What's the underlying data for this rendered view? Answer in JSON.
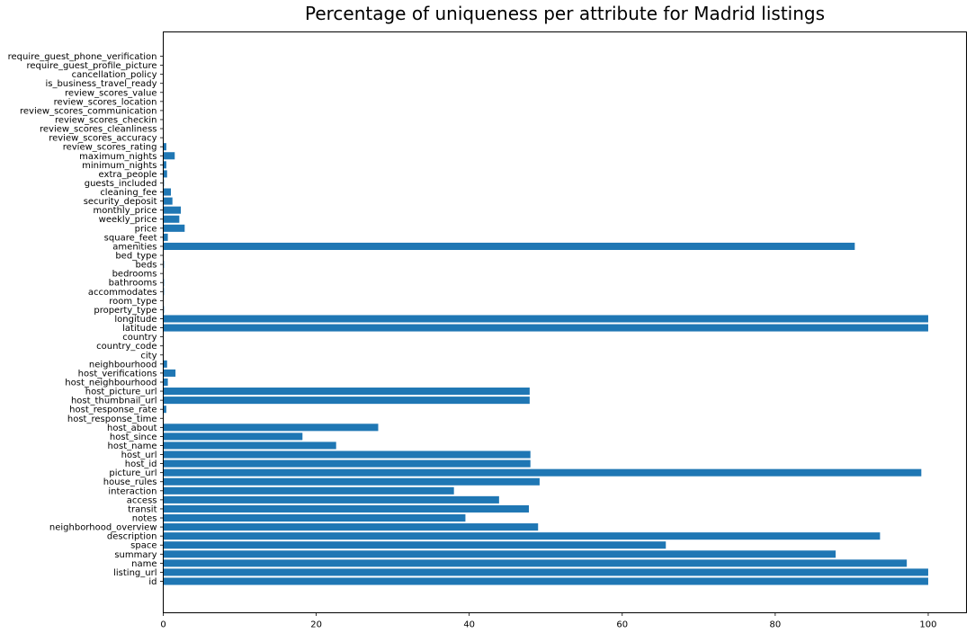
{
  "chart_data": {
    "type": "bar",
    "orientation": "horizontal",
    "title": "Percentage of uniqueness per attribute for Madrid listings",
    "xlabel": "",
    "ylabel": "",
    "xlim": [
      0,
      105
    ],
    "xticks": [
      0,
      20,
      40,
      60,
      80,
      100
    ],
    "grid": false,
    "bar_color": "#1f77b4",
    "categories": [
      "id",
      "listing_url",
      "name",
      "summary",
      "space",
      "description",
      "neighborhood_overview",
      "notes",
      "transit",
      "access",
      "interaction",
      "house_rules",
      "picture_url",
      "host_id",
      "host_url",
      "host_name",
      "host_since",
      "host_about",
      "host_response_time",
      "host_response_rate",
      "host_thumbnail_url",
      "host_picture_url",
      "host_neighbourhood",
      "host_verifications",
      "neighbourhood",
      "city",
      "country_code",
      "country",
      "latitude",
      "longitude",
      "property_type",
      "room_type",
      "accommodates",
      "bathrooms",
      "bedrooms",
      "beds",
      "bed_type",
      "amenities",
      "square_feet",
      "price",
      "weekly_price",
      "monthly_price",
      "security_deposit",
      "cleaning_fee",
      "guests_included",
      "extra_people",
      "minimum_nights",
      "maximum_nights",
      "review_scores_rating",
      "review_scores_accuracy",
      "review_scores_cleanliness",
      "review_scores_checkin",
      "review_scores_communication",
      "review_scores_location",
      "review_scores_value",
      "is_business_travel_ready",
      "cancellation_policy",
      "require_guest_profile_picture",
      "require_guest_phone_verification"
    ],
    "values": [
      100.0,
      100.0,
      97.2,
      87.9,
      65.7,
      93.7,
      49.0,
      39.5,
      47.8,
      43.9,
      38.0,
      49.2,
      99.1,
      48.0,
      48.0,
      22.6,
      18.2,
      28.1,
      0.05,
      0.4,
      47.9,
      47.9,
      0.6,
      1.6,
      0.5,
      0.05,
      0.05,
      0.02,
      100.0,
      100.0,
      0.1,
      0.02,
      0.1,
      0.1,
      0.05,
      0.1,
      0.02,
      90.4,
      0.6,
      2.8,
      2.1,
      2.3,
      1.2,
      1.0,
      0.1,
      0.5,
      0.4,
      1.5,
      0.4,
      0.05,
      0.05,
      0.05,
      0.05,
      0.05,
      0.05,
      0.02,
      0.05,
      0.02,
      0.02
    ]
  }
}
